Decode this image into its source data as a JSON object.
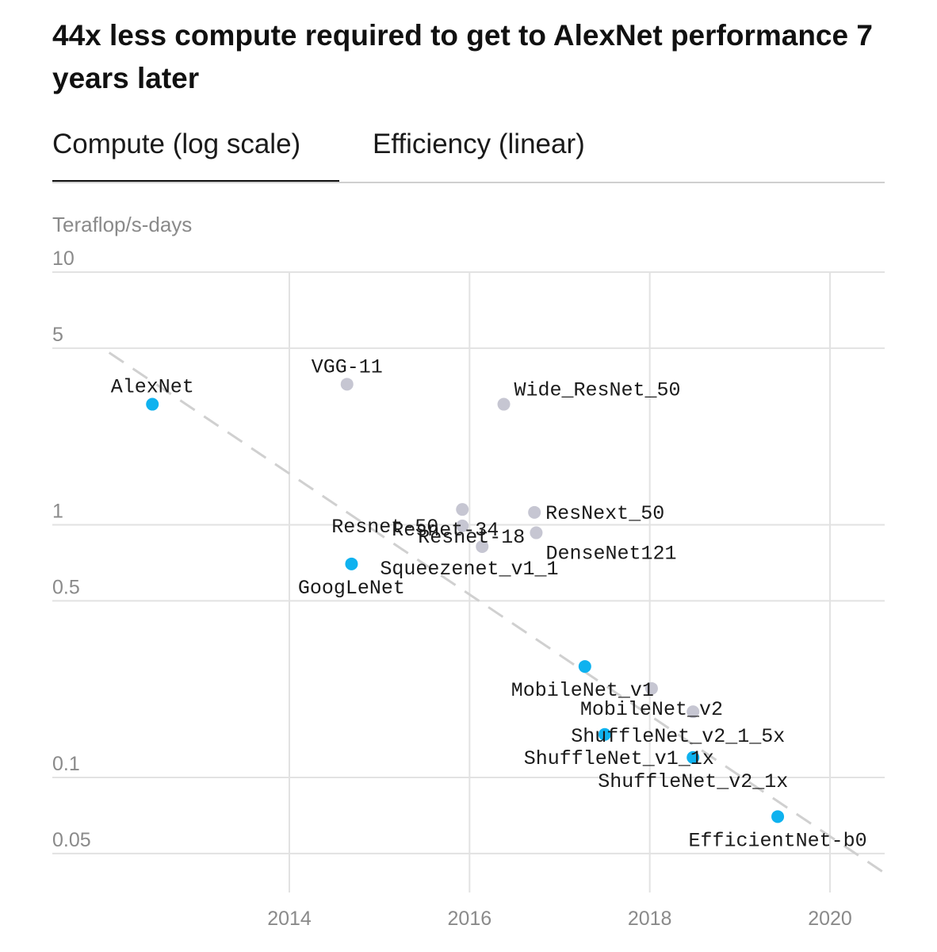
{
  "title": "44x less compute required to get to AlexNet performance 7 years later",
  "tabs": [
    {
      "label": "Compute (log scale)",
      "active": true
    },
    {
      "label": "Efficiency (linear)",
      "active": false
    }
  ],
  "colors": {
    "highlight": "#0fb2ef",
    "other": "#c6c6d2",
    "grid": "#e2e2e2",
    "trend": "#d0d0d0"
  },
  "chart_data": {
    "type": "scatter",
    "title": "44x less compute required to get to AlexNet performance 7 years later",
    "ylabel": "Teraflop/s-days",
    "xlabel": "",
    "yscale": "log",
    "ylim": [
      0.035,
      10
    ],
    "xlim": [
      2012.0,
      2020.6
    ],
    "x_ticks": [
      2014,
      2016,
      2018,
      2020
    ],
    "y_ticks": [
      10,
      5,
      1,
      0.5,
      0.1,
      0.05
    ],
    "y_tick_labels": [
      "10",
      "5",
      "1",
      "0.5",
      "0.1",
      "0.05"
    ],
    "trend": {
      "x": [
        2012.0,
        2020.6
      ],
      "y": [
        4.8,
        0.042
      ]
    },
    "points": [
      {
        "name": "AlexNet",
        "x": 2012.48,
        "y": 3.0,
        "highlight": true
      },
      {
        "name": "VGG-11",
        "x": 2014.64,
        "y": 3.6,
        "highlight": false
      },
      {
        "name": "Wide_ResNet_50",
        "x": 2016.38,
        "y": 3.0,
        "highlight": false
      },
      {
        "name": "Resnet-50",
        "x": 2015.92,
        "y": 1.15,
        "highlight": false
      },
      {
        "name": "Resnet-34",
        "x": 2015.92,
        "y": 0.99,
        "highlight": false
      },
      {
        "name": "ResNext_50",
        "x": 2016.72,
        "y": 1.12,
        "highlight": false
      },
      {
        "name": "DenseNet121",
        "x": 2016.74,
        "y": 0.93,
        "highlight": false
      },
      {
        "name": "Resnet-18",
        "x": 2016.14,
        "y": 0.82,
        "highlight": false
      },
      {
        "name": "GoogLeNet",
        "x": 2014.69,
        "y": 0.7,
        "highlight": true
      },
      {
        "name": "Squeezenet_v1_1",
        "x": 2014.69,
        "y": 0.7,
        "highlight": false
      },
      {
        "name": "MobileNet_v1",
        "x": 2017.28,
        "y": 0.275,
        "highlight": true
      },
      {
        "name": "MobileNet_v2",
        "x": 2018.02,
        "y": 0.225,
        "highlight": false
      },
      {
        "name": "ShuffleNet_v2_1_5x",
        "x": 2018.48,
        "y": 0.182,
        "highlight": false
      },
      {
        "name": "ShuffleNet_v1_1x",
        "x": 2017.5,
        "y": 0.148,
        "highlight": true
      },
      {
        "name": "ShuffleNet_v2_1x",
        "x": 2018.48,
        "y": 0.12,
        "highlight": true
      },
      {
        "name": "EfficientNet-b0",
        "x": 2019.42,
        "y": 0.07,
        "highlight": true
      }
    ]
  }
}
